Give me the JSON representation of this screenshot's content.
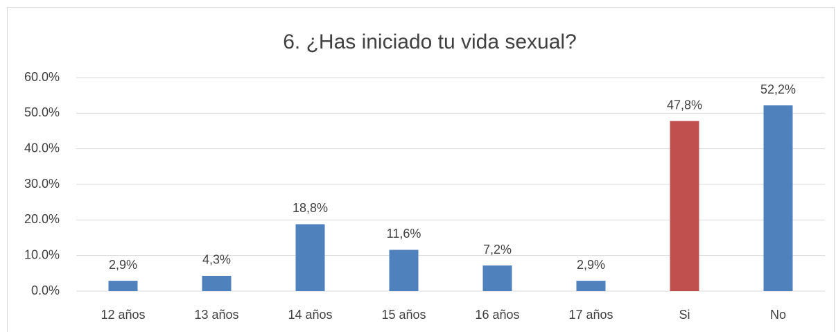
{
  "chart_data": {
    "type": "bar",
    "title": "6. ¿Has iniciado tu vida sexual?",
    "categories": [
      "12 años",
      "13 años",
      "14 años",
      "15 años",
      "16 años",
      "17 años",
      "Si",
      "No"
    ],
    "values": [
      2.9,
      4.3,
      18.8,
      11.6,
      7.2,
      2.9,
      47.8,
      52.2
    ],
    "value_labels": [
      "2,9%",
      "4,3%",
      "18,8%",
      "11,6%",
      "7,2%",
      "2,9%",
      "47,8%",
      "52,2%"
    ],
    "colors": [
      "#4f81bd",
      "#4f81bd",
      "#4f81bd",
      "#4f81bd",
      "#4f81bd",
      "#4f81bd",
      "#c0504d",
      "#4f81bd"
    ],
    "ylim": [
      0,
      60
    ],
    "yticks": [
      {
        "value": 0,
        "label": "0.0%"
      },
      {
        "value": 10,
        "label": "10.0%"
      },
      {
        "value": 20,
        "label": "20.0%"
      },
      {
        "value": 30,
        "label": "30.0%"
      },
      {
        "value": 40,
        "label": "40.0%"
      },
      {
        "value": 50,
        "label": "50.0%"
      },
      {
        "value": 60,
        "label": "60.0%"
      }
    ],
    "grid": true
  }
}
